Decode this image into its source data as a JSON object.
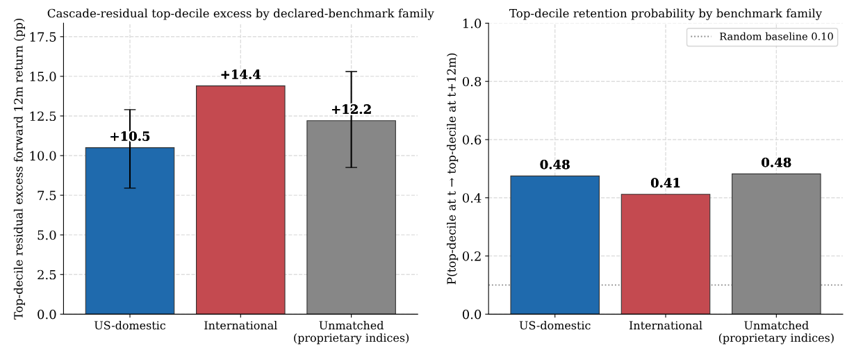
{
  "chart_data": [
    {
      "type": "bar",
      "title": "Cascade-residual top-decile excess by declared-benchmark family",
      "ylabel": "Top-decile residual excess forward 12m return (pp)",
      "categories": [
        "US-domestic",
        "International",
        "Unmatched\n(proprietary indices)"
      ],
      "values": [
        10.5,
        14.4,
        12.2
      ],
      "colors": [
        "#1f6aad",
        "#c44a50",
        "#878787"
      ],
      "errors": [
        [
          7.95,
          12.9
        ],
        null,
        [
          9.25,
          15.3
        ]
      ],
      "value_labels": [
        "+10.5",
        "+14.4",
        "+12.2"
      ],
      "ylim": [
        0,
        18.35
      ],
      "yticks": [
        {
          "value": 0,
          "label": "0.0"
        },
        2.5,
        {
          "value": 5,
          "label": "5.0"
        },
        7.5,
        {
          "value": 10,
          "label": "10.0"
        },
        12.5,
        {
          "value": 15,
          "label": "15.0"
        },
        17.5
      ],
      "grid": true
    },
    {
      "type": "bar",
      "title": "Top-decile retention probability by benchmark family",
      "ylabel": "P(top-decile at t → top-decile at t+12m)",
      "categories": [
        "US-domestic",
        "International",
        "Unmatched\n(proprietary indices)"
      ],
      "values": [
        0.475,
        0.412,
        0.482
      ],
      "colors": [
        "#1f6aad",
        "#c44a50",
        "#878787"
      ],
      "value_labels": [
        "0.48",
        "0.41",
        "0.48"
      ],
      "ylim": [
        0,
        1
      ],
      "yticks": [
        {
          "value": 0,
          "label": "0.0"
        },
        0.2,
        0.4,
        0.6,
        0.8,
        {
          "value": 1,
          "label": "1.0"
        }
      ],
      "grid": true,
      "ref_lines": [
        {
          "axis": "y",
          "value": 0.1,
          "label": "Random baseline 0.10",
          "color": "#888888",
          "line_style": "dotted"
        }
      ],
      "legend": "top right"
    }
  ]
}
